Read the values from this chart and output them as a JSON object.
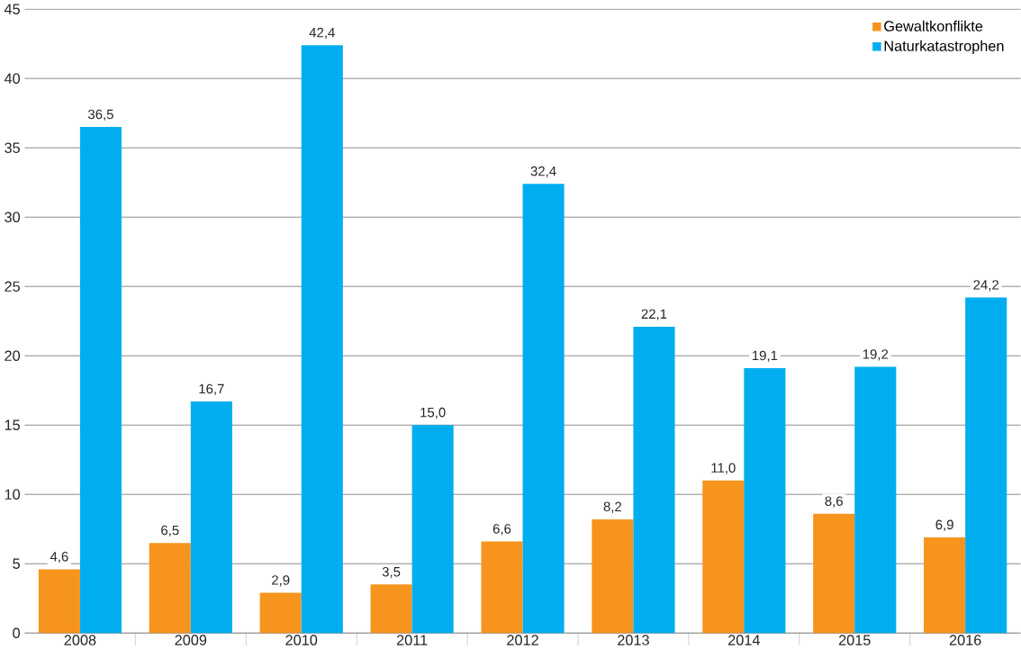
{
  "chart_data": {
    "type": "bar",
    "categories": [
      "2008",
      "2009",
      "2010",
      "2011",
      "2012",
      "2013",
      "2014",
      "2015",
      "2016"
    ],
    "series": [
      {
        "name": "Gewaltkonflikte",
        "color": "#f7941d",
        "values": [
          4.6,
          6.5,
          2.9,
          3.5,
          6.6,
          8.2,
          11.0,
          8.6,
          6.9
        ],
        "value_labels": [
          "4,6",
          "6,5",
          "2,9",
          "3,5",
          "6,6",
          "8,2",
          "11,0",
          "8,6",
          "6,9"
        ]
      },
      {
        "name": "Naturkatastrophen",
        "color": "#00aeef",
        "values": [
          36.5,
          16.7,
          42.4,
          15.0,
          32.4,
          22.1,
          19.1,
          19.2,
          24.2
        ],
        "value_labels": [
          "36,5",
          "16,7",
          "42,4",
          "15,0",
          "32,4",
          "22,1",
          "19,1",
          "19,2",
          "24,2"
        ]
      }
    ],
    "ylim": [
      0,
      45
    ],
    "yticks": [
      0,
      5,
      10,
      15,
      20,
      25,
      30,
      35,
      40,
      45
    ],
    "grid": "y",
    "legend": "top right"
  }
}
